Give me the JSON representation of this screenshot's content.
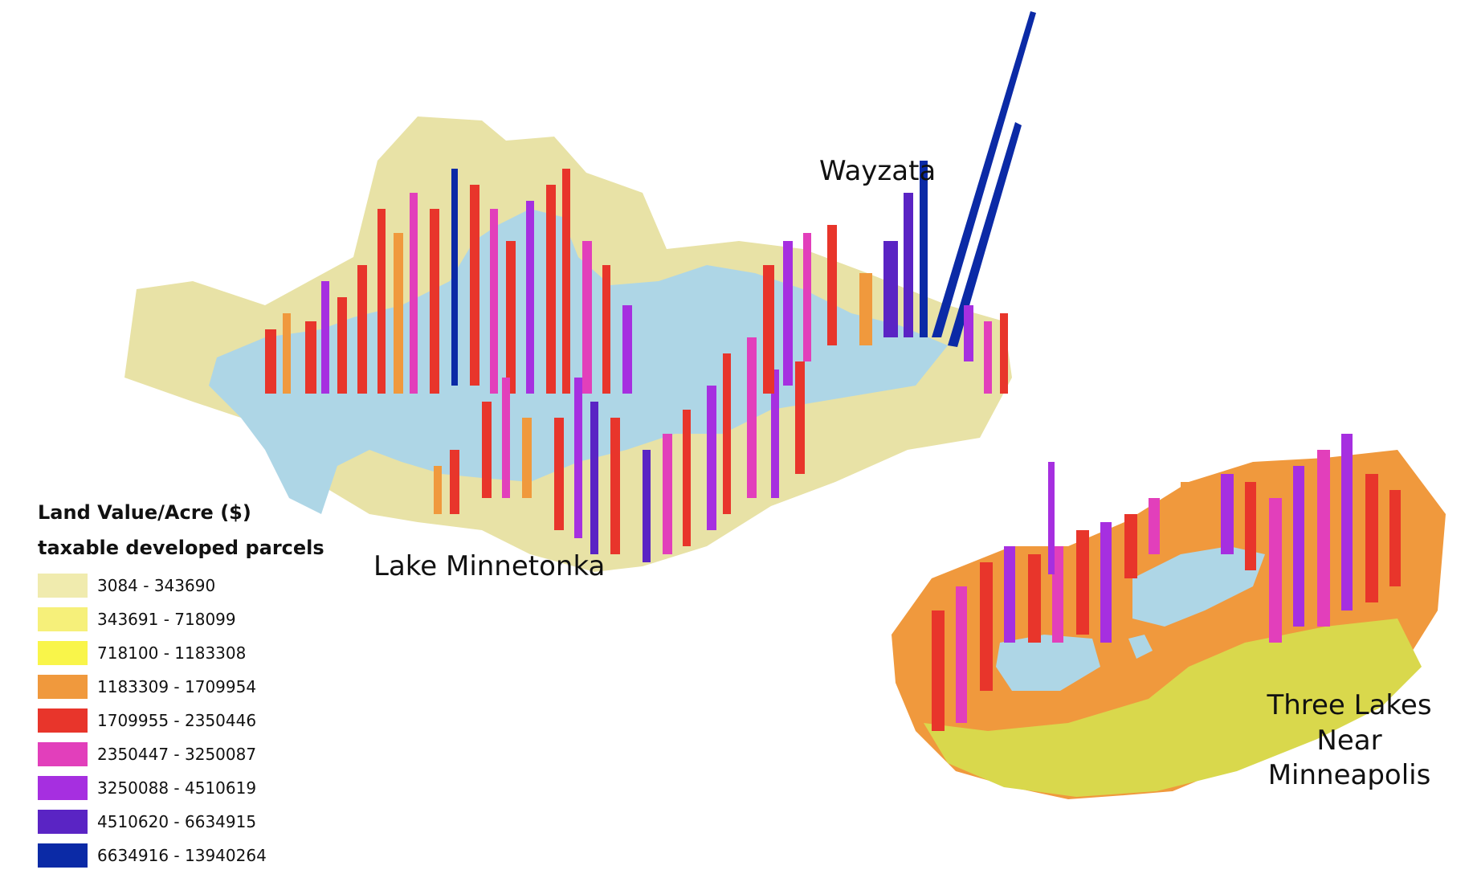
{
  "labels": {
    "wayzata": "Wayzata",
    "lake_minnetonka": "Lake Minnetonka",
    "three_lakes": "Three Lakes\nNear\nMinneapolis"
  },
  "legend": {
    "title": "Land Value/Acre ($)",
    "subtitle": "taxable developed parcels",
    "classes": [
      {
        "label": "3084 - 343690",
        "color": "#f0ebae"
      },
      {
        "label": "343691 - 718099",
        "color": "#f6f07a"
      },
      {
        "label": "718100 - 1183308",
        "color": "#f9f54a"
      },
      {
        "label": "1183309 - 1709954",
        "color": "#f0993d"
      },
      {
        "label": "1709955 - 2350446",
        "color": "#e8352b"
      },
      {
        "label": "2350447 - 3250087",
        "color": "#e23fbb"
      },
      {
        "label": "3250088 - 4510619",
        "color": "#a62fe0"
      },
      {
        "label": "4510620 - 6634915",
        "color": "#5a24c4"
      },
      {
        "label": "6634916 - 13940264",
        "color": "#0b2aa6"
      }
    ]
  },
  "colors": {
    "water": "#aed6e6",
    "background": "#ffffff"
  }
}
